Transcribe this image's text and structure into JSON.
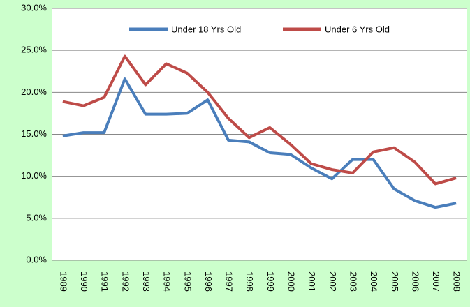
{
  "chart_data": {
    "type": "line",
    "categories": [
      "1989",
      "1990",
      "1991",
      "1992",
      "1993",
      "1994",
      "1995",
      "1996",
      "1997",
      "1998",
      "1999",
      "2000",
      "2001",
      "2002",
      "2003",
      "2004",
      "2005",
      "2006",
      "2007",
      "2008"
    ],
    "series": [
      {
        "name": "Under 18 Yrs Old",
        "color": "#4a7ebb",
        "values": [
          14.8,
          15.2,
          15.2,
          21.6,
          17.4,
          17.4,
          17.5,
          19.1,
          14.3,
          14.1,
          12.8,
          12.6,
          11.0,
          9.7,
          12.0,
          12.0,
          8.5,
          7.1,
          6.3,
          6.8
        ]
      },
      {
        "name": "Under 6 Yrs Old",
        "color": "#be4b48",
        "values": [
          18.9,
          18.4,
          19.4,
          24.3,
          20.9,
          23.4,
          22.3,
          20.0,
          16.9,
          14.6,
          15.8,
          13.8,
          11.5,
          10.8,
          10.4,
          12.9,
          13.4,
          11.7,
          9.1,
          9.8
        ]
      }
    ],
    "ylim": [
      0,
      30
    ],
    "yticks": [
      {
        "value": 0,
        "label": "0.0%"
      },
      {
        "value": 5,
        "label": "5.0%"
      },
      {
        "value": 10,
        "label": "10.0%"
      },
      {
        "value": 15,
        "label": "15.0%"
      },
      {
        "value": 20,
        "label": "20.0%"
      },
      {
        "value": 25,
        "label": "25.0%"
      },
      {
        "value": 30,
        "label": "30.0%"
      }
    ],
    "grid": true,
    "legend": "top"
  }
}
